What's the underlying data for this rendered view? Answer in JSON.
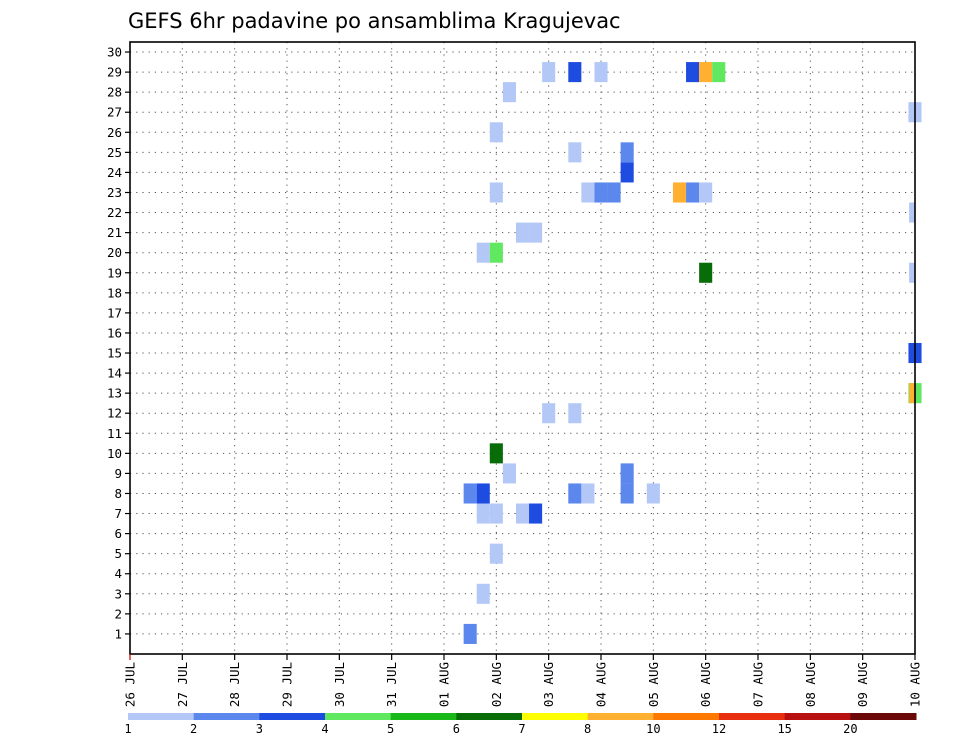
{
  "chart_data": {
    "type": "heatmap",
    "title": "GEFS 6hr padavine po ansamblima Kragujevac",
    "x_ticks": [
      "26 JUL",
      "27 JUL",
      "28 JUL",
      "29 JUL",
      "30 JUL",
      "31 JUL",
      "01 AUG",
      "02 AUG",
      "03 AUG",
      "04 AUG",
      "05 AUG",
      "06 AUG",
      "07 AUG",
      "08 AUG",
      "09 AUG",
      "10 AUG"
    ],
    "y_ticks": [
      "1",
      "2",
      "3",
      "4",
      "5",
      "6",
      "7",
      "8",
      "9",
      "10",
      "11",
      "12",
      "13",
      "14",
      "15",
      "16",
      "17",
      "18",
      "19",
      "20",
      "21",
      "22",
      "23",
      "24",
      "25",
      "26",
      "27",
      "28",
      "29",
      "30"
    ],
    "grid": true,
    "colorbar": {
      "labels": [
        "1",
        "2",
        "3",
        "4",
        "5",
        "6",
        "7",
        "8",
        "10",
        "12",
        "15",
        "20"
      ],
      "colors": [
        "#b4c8f8",
        "#5c88ee",
        "#1f4ce0",
        "#60e860",
        "#18b818",
        "#086c08",
        "#ffff00",
        "#ffb030",
        "#ff7800",
        "#e83010",
        "#b81010",
        "#6c0808"
      ]
    },
    "series_note": "x = 6-hourly step index from 26 JUL 00Z (4 steps per day); y = ensemble member; v = colour class 1-12",
    "cells": [
      {
        "x": 26,
        "y": 1,
        "v": 2
      },
      {
        "x": 27,
        "y": 3,
        "v": 1
      },
      {
        "x": 28,
        "y": 5,
        "v": 1
      },
      {
        "x": 27,
        "y": 7,
        "v": 1
      },
      {
        "x": 28,
        "y": 7,
        "v": 1
      },
      {
        "x": 30,
        "y": 7,
        "v": 1
      },
      {
        "x": 31,
        "y": 7,
        "v": 3
      },
      {
        "x": 26,
        "y": 8,
        "v": 2
      },
      {
        "x": 27,
        "y": 8,
        "v": 3
      },
      {
        "x": 34,
        "y": 8,
        "v": 2
      },
      {
        "x": 35,
        "y": 8,
        "v": 1
      },
      {
        "x": 38,
        "y": 8,
        "v": 2
      },
      {
        "x": 40,
        "y": 8,
        "v": 1
      },
      {
        "x": 38,
        "y": 9,
        "v": 2
      },
      {
        "x": 29,
        "y": 9,
        "v": 1
      },
      {
        "x": 28,
        "y": 10,
        "v": 6
      },
      {
        "x": 32,
        "y": 12,
        "v": 1
      },
      {
        "x": 34,
        "y": 12,
        "v": 1
      },
      {
        "x": 60,
        "y": 13,
        "v": 4
      },
      {
        "x": 60,
        "y": 15,
        "v": 3
      },
      {
        "x": 44,
        "y": 19,
        "v": 6
      },
      {
        "x": 27,
        "y": 20,
        "v": 1
      },
      {
        "x": 28,
        "y": 20,
        "v": 4
      },
      {
        "x": 30,
        "y": 21,
        "v": 1
      },
      {
        "x": 31,
        "y": 21,
        "v": 1
      },
      {
        "x": 28,
        "y": 23,
        "v": 1
      },
      {
        "x": 35,
        "y": 23,
        "v": 1
      },
      {
        "x": 36,
        "y": 23,
        "v": 2
      },
      {
        "x": 37,
        "y": 23,
        "v": 2
      },
      {
        "x": 42,
        "y": 23,
        "v": 8
      },
      {
        "x": 43,
        "y": 23,
        "v": 2
      },
      {
        "x": 44,
        "y": 23,
        "v": 1
      },
      {
        "x": 38,
        "y": 24,
        "v": 3
      },
      {
        "x": 34,
        "y": 25,
        "v": 1
      },
      {
        "x": 38,
        "y": 25,
        "v": 2
      },
      {
        "x": 28,
        "y": 26,
        "v": 1
      },
      {
        "x": 60,
        "y": 27,
        "v": 1
      },
      {
        "x": 29,
        "y": 28,
        "v": 1
      },
      {
        "x": 32,
        "y": 29,
        "v": 1
      },
      {
        "x": 34,
        "y": 29,
        "v": 3
      },
      {
        "x": 36,
        "y": 29,
        "v": 1
      },
      {
        "x": 43,
        "y": 29,
        "v": 3
      },
      {
        "x": 44,
        "y": 29,
        "v": 8
      },
      {
        "x": 45,
        "y": 29,
        "v": 4
      }
    ],
    "edge_cells": [
      {
        "y": 13,
        "v": 8
      },
      {
        "y": 19,
        "v": 1
      },
      {
        "y": 22,
        "v": 1
      }
    ]
  }
}
